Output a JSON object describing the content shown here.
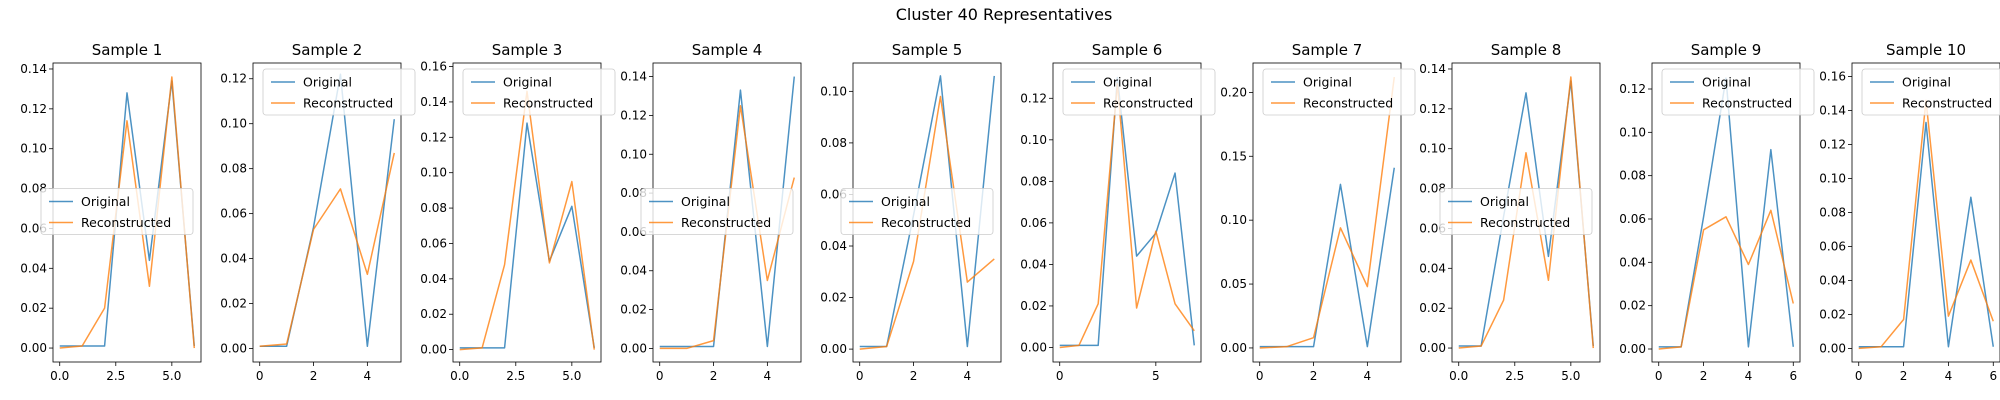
{
  "suptitle": "Cluster 40 Representatives",
  "colors": {
    "original": "#1f77b4",
    "reconstructed": "#ff7f0e"
  },
  "chart_data": [
    {
      "type": "line",
      "title": "Sample 1",
      "xlim": [
        -0.3,
        6.3
      ],
      "ylim": [
        -0.007,
        0.143
      ],
      "xticks": [
        0.0,
        2.5,
        5.0
      ],
      "xticklabels": [
        "0.0",
        "2.5",
        "5.0"
      ],
      "yticks": [
        0,
        0.02,
        0.04,
        0.06,
        0.08,
        0.1,
        0.12,
        0.14
      ],
      "yticklabels": [
        "0.00",
        "0.02",
        "0.04",
        "0.06",
        "0.08",
        "0.10",
        "0.12",
        "0.14"
      ],
      "legend_loc": "center-left",
      "x": [
        0,
        1,
        2,
        3,
        4,
        5,
        6
      ],
      "series": [
        {
          "name": "Original",
          "values": [
            0.001,
            0.001,
            0.001,
            0.128,
            0.044,
            0.134,
            0.001
          ]
        },
        {
          "name": "Reconstructed",
          "values": [
            0.0,
            0.001,
            0.02,
            0.114,
            0.031,
            0.136,
            0.0
          ]
        }
      ]
    },
    {
      "type": "line",
      "title": "Sample 2",
      "xlim": [
        -0.25,
        5.25
      ],
      "ylim": [
        -0.006,
        0.127
      ],
      "xticks": [
        0,
        2,
        4
      ],
      "xticklabels": [
        "0",
        "2",
        "4"
      ],
      "yticks": [
        0,
        0.02,
        0.04,
        0.06,
        0.08,
        0.1,
        0.12
      ],
      "yticklabels": [
        "0.00",
        "0.02",
        "0.04",
        "0.06",
        "0.08",
        "0.10",
        "0.12"
      ],
      "legend_loc": "upper-right",
      "x": [
        0,
        1,
        2,
        3,
        4,
        5
      ],
      "series": [
        {
          "name": "Original",
          "values": [
            0.001,
            0.001,
            0.054,
            0.122,
            0.001,
            0.102
          ]
        },
        {
          "name": "Reconstructed",
          "values": [
            0.001,
            0.002,
            0.053,
            0.071,
            0.033,
            0.087
          ]
        }
      ]
    },
    {
      "type": "line",
      "title": "Sample 3",
      "xlim": [
        -0.3,
        6.3
      ],
      "ylim": [
        -0.007,
        0.162
      ],
      "xticks": [
        0.0,
        2.5,
        5.0
      ],
      "xticklabels": [
        "0.0",
        "2.5",
        "5.0"
      ],
      "yticks": [
        0,
        0.02,
        0.04,
        0.06,
        0.08,
        0.1,
        0.12,
        0.14,
        0.16
      ],
      "yticklabels": [
        "0.00",
        "0.02",
        "0.04",
        "0.06",
        "0.08",
        "0.10",
        "0.12",
        "0.14",
        "0.16"
      ],
      "legend_loc": "upper-right",
      "x": [
        0,
        1,
        2,
        3,
        4,
        5,
        6
      ],
      "series": [
        {
          "name": "Original",
          "values": [
            0.001,
            0.001,
            0.001,
            0.128,
            0.05,
            0.081,
            0.001
          ]
        },
        {
          "name": "Reconstructed",
          "values": [
            0.0,
            0.001,
            0.048,
            0.146,
            0.049,
            0.095,
            0.0
          ]
        }
      ]
    },
    {
      "type": "line",
      "title": "Sample 4",
      "xlim": [
        -0.25,
        5.25
      ],
      "ylim": [
        -0.007,
        0.147
      ],
      "xticks": [
        0,
        2,
        4
      ],
      "xticklabels": [
        "0",
        "2",
        "4"
      ],
      "yticks": [
        0,
        0.02,
        0.04,
        0.06,
        0.08,
        0.1,
        0.12,
        0.14
      ],
      "yticklabels": [
        "0.00",
        "0.02",
        "0.04",
        "0.06",
        "0.08",
        "0.10",
        "0.12",
        "0.14"
      ],
      "legend_loc": "center-left",
      "x": [
        0,
        1,
        2,
        3,
        4,
        5
      ],
      "series": [
        {
          "name": "Original",
          "values": [
            0.001,
            0.001,
            0.001,
            0.133,
            0.001,
            0.14
          ]
        },
        {
          "name": "Reconstructed",
          "values": [
            0.0,
            0.0,
            0.004,
            0.125,
            0.035,
            0.088
          ]
        }
      ]
    },
    {
      "type": "line",
      "title": "Sample 5",
      "xlim": [
        -0.25,
        5.25
      ],
      "ylim": [
        -0.005,
        0.111
      ],
      "xticks": [
        0,
        2,
        4
      ],
      "xticklabels": [
        "0",
        "2",
        "4"
      ],
      "yticks": [
        0,
        0.02,
        0.04,
        0.06,
        0.08,
        0.1
      ],
      "yticklabels": [
        "0.00",
        "0.02",
        "0.04",
        "0.06",
        "0.08",
        "0.10"
      ],
      "legend_loc": "center-left",
      "x": [
        0,
        1,
        2,
        3,
        4,
        5
      ],
      "series": [
        {
          "name": "Original",
          "values": [
            0.001,
            0.001,
            0.052,
            0.106,
            0.001,
            0.106
          ]
        },
        {
          "name": "Reconstructed",
          "values": [
            0.0,
            0.001,
            0.034,
            0.098,
            0.026,
            0.035
          ]
        }
      ]
    },
    {
      "type": "line",
      "title": "Sample 6",
      "xlim": [
        -0.35,
        7.35
      ],
      "ylim": [
        -0.007,
        0.137
      ],
      "xticks": [
        0,
        5
      ],
      "xticklabels": [
        "0",
        "5"
      ],
      "yticks": [
        0,
        0.02,
        0.04,
        0.06,
        0.08,
        0.1,
        0.12
      ],
      "yticklabels": [
        "0.00",
        "0.02",
        "0.04",
        "0.06",
        "0.08",
        "0.10",
        "0.12"
      ],
      "legend_loc": "upper-right",
      "x": [
        0,
        1,
        2,
        3,
        4,
        5,
        6,
        7
      ],
      "series": [
        {
          "name": "Original",
          "values": [
            0.001,
            0.001,
            0.001,
            0.13,
            0.044,
            0.055,
            0.084,
            0.001
          ]
        },
        {
          "name": "Reconstructed",
          "values": [
            0.0,
            0.001,
            0.021,
            0.127,
            0.019,
            0.056,
            0.021,
            0.008
          ]
        }
      ]
    },
    {
      "type": "line",
      "title": "Sample 7",
      "xlim": [
        -0.25,
        5.25
      ],
      "ylim": [
        -0.011,
        0.223
      ],
      "xticks": [
        0,
        2,
        4
      ],
      "xticklabels": [
        "0",
        "2",
        "4"
      ],
      "yticks": [
        0,
        0.05,
        0.1,
        0.15,
        0.2
      ],
      "yticklabels": [
        "0.00",
        "0.05",
        "0.10",
        "0.15",
        "0.20"
      ],
      "legend_loc": "upper-right",
      "x": [
        0,
        1,
        2,
        3,
        4,
        5
      ],
      "series": [
        {
          "name": "Original",
          "values": [
            0.001,
            0.001,
            0.001,
            0.128,
            0.001,
            0.141
          ]
        },
        {
          "name": "Reconstructed",
          "values": [
            0.0,
            0.001,
            0.008,
            0.094,
            0.048,
            0.212
          ]
        }
      ]
    },
    {
      "type": "line",
      "title": "Sample 8",
      "xlim": [
        -0.3,
        6.3
      ],
      "ylim": [
        -0.007,
        0.143
      ],
      "xticks": [
        0.0,
        2.5,
        5.0
      ],
      "xticklabels": [
        "0.0",
        "2.5",
        "5.0"
      ],
      "yticks": [
        0,
        0.02,
        0.04,
        0.06,
        0.08,
        0.1,
        0.12,
        0.14
      ],
      "yticklabels": [
        "0.00",
        "0.02",
        "0.04",
        "0.06",
        "0.08",
        "0.10",
        "0.12",
        "0.14"
      ],
      "legend_loc": "center-left",
      "x": [
        0,
        1,
        2,
        3,
        4,
        5,
        6
      ],
      "series": [
        {
          "name": "Original",
          "values": [
            0.001,
            0.001,
            0.066,
            0.128,
            0.046,
            0.134,
            0.001
          ]
        },
        {
          "name": "Reconstructed",
          "values": [
            0.0,
            0.001,
            0.024,
            0.098,
            0.034,
            0.136,
            0.0
          ]
        }
      ]
    },
    {
      "type": "line",
      "title": "Sample 9",
      "xlim": [
        -0.3,
        6.3
      ],
      "ylim": [
        -0.006,
        0.132
      ],
      "xticks": [
        0,
        2,
        4,
        6
      ],
      "xticklabels": [
        "0",
        "2",
        "4",
        "6"
      ],
      "yticks": [
        0,
        0.02,
        0.04,
        0.06,
        0.08,
        0.1,
        0.12
      ],
      "yticklabels": [
        "0.00",
        "0.02",
        "0.04",
        "0.06",
        "0.08",
        "0.10",
        "0.12"
      ],
      "legend_loc": "upper-right",
      "x": [
        0,
        1,
        2,
        3,
        4,
        5,
        6
      ],
      "series": [
        {
          "name": "Original",
          "values": [
            0.001,
            0.001,
            0.061,
            0.125,
            0.001,
            0.092,
            0.001
          ]
        },
        {
          "name": "Reconstructed",
          "values": [
            0.0,
            0.001,
            0.055,
            0.061,
            0.039,
            0.064,
            0.021
          ]
        }
      ]
    },
    {
      "type": "line",
      "title": "Sample 10",
      "xlim": [
        -0.3,
        6.3
      ],
      "ylim": [
        -0.008,
        0.168
      ],
      "xticks": [
        0,
        2,
        4,
        6
      ],
      "xticklabels": [
        "0",
        "2",
        "4",
        "6"
      ],
      "yticks": [
        0,
        0.02,
        0.04,
        0.06,
        0.08,
        0.1,
        0.12,
        0.14,
        0.16
      ],
      "yticklabels": [
        "0.00",
        "0.02",
        "0.04",
        "0.06",
        "0.08",
        "0.10",
        "0.12",
        "0.14",
        "0.16"
      ],
      "legend_loc": "upper-right",
      "x": [
        0,
        1,
        2,
        3,
        4,
        5,
        6
      ],
      "series": [
        {
          "name": "Original",
          "values": [
            0.001,
            0.001,
            0.001,
            0.133,
            0.001,
            0.089,
            0.001
          ]
        },
        {
          "name": "Reconstructed",
          "values": [
            0.0,
            0.001,
            0.017,
            0.146,
            0.019,
            0.052,
            0.016
          ]
        }
      ]
    }
  ]
}
